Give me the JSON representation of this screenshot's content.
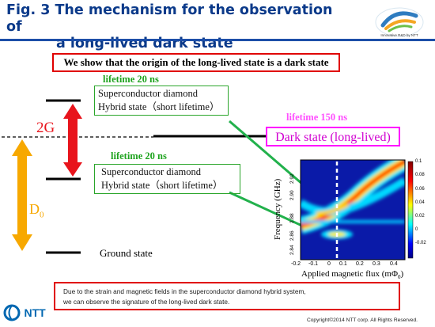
{
  "title": {
    "line1": "Fig. 3 The mechanism for the observation of",
    "line2": "a long-lived dark state"
  },
  "logo": {
    "caption": "Innovative R&D by NTT"
  },
  "headline": "We show that the origin of the long-lived state is a dark state",
  "upper_state": {
    "lifetime": "lifetime 20 ns",
    "line1": "Superconductor diamond",
    "line2": "Hybrid state（short lifetime）"
  },
  "lower_state": {
    "lifetime": "lifetime 20 ns",
    "line1": "Superconductor diamond",
    "line2": "Hybrid state（short lifetime）"
  },
  "dark_state": {
    "lifetime": "lifetime 150 ns",
    "label": "Dark state (long-lived)"
  },
  "splitting_2g": "2G",
  "d0_label": "D",
  "d0_sub": "0",
  "ground_state": "Ground state",
  "heatmap": {
    "ylabel": "Frequency (GHz)",
    "xlabel": "Applied magnetic flux (mΦ",
    "xlabel_sub": "0",
    "xlabel_end": ")",
    "xticks": [
      "-0.2",
      "-0.1",
      "0",
      "0.1",
      "0.2",
      "0.3",
      "0.4"
    ],
    "yticks": [
      "2.84",
      "2.86",
      "2.88",
      "2.90",
      "2.92"
    ],
    "cbar_ticks": [
      "0.1",
      "0.08",
      "0.06",
      "0.04",
      "0.02",
      "0",
      "-0.02"
    ]
  },
  "note": {
    "line1": "Due to the strain and magnetic fields in the superconductor diamond hybrid system,",
    "line2": "we can observe the signature of the long-lived dark state."
  },
  "footer": {
    "company": "NTT",
    "copyright": "Copyright©2014 NTT corp. All Rights Reserved."
  },
  "colors": {
    "title_blue": "#0b3a8a",
    "red": "#e00000",
    "green": "#1ea31e",
    "magenta": "#ff00ff",
    "orange": "#f7a800"
  }
}
